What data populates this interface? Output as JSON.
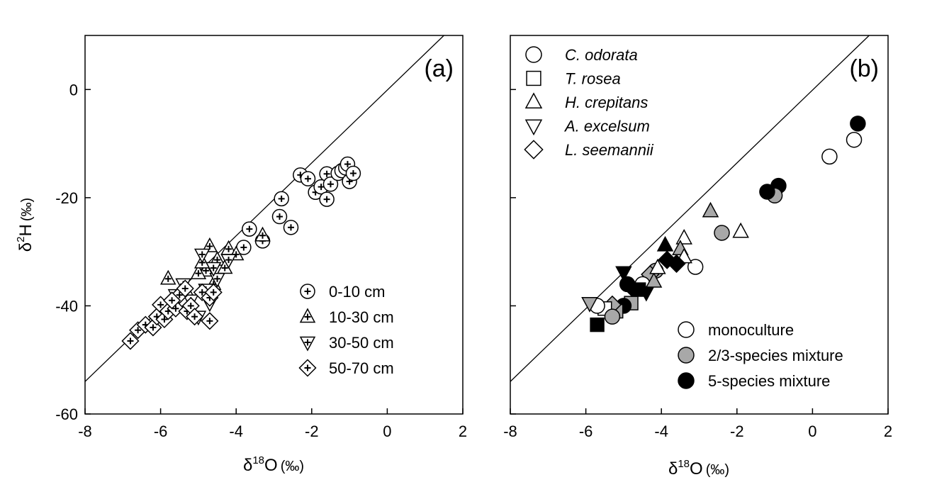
{
  "chart_data": [
    {
      "type": "scatter",
      "panel_label": "(a)",
      "xlabel": "δ18O (‰)",
      "xlabel_parts": {
        "delta": "δ",
        "sup": "18",
        "base": "O",
        "unit": "(‰)"
      },
      "ylabel": "δ2H (‰)",
      "ylabel_parts": {
        "delta": "δ",
        "sup": "2",
        "base": "H",
        "unit": "(‰)"
      },
      "xlim": [
        -8,
        2
      ],
      "ylim": [
        -60,
        10
      ],
      "xticks": [
        -8,
        -6,
        -4,
        -2,
        0,
        2
      ],
      "yticks": [
        -60,
        -40,
        -20,
        0
      ],
      "grid": false,
      "reference_line": {
        "x": [
          -8,
          1.5
        ],
        "y": [
          -54,
          10
        ]
      },
      "legend_position": "bottom-right",
      "series": [
        {
          "name": "0-10 cm",
          "marker": "circle-plus",
          "points": [
            [
              -2.3,
              -15.8
            ],
            [
              -2.1,
              -16.5
            ],
            [
              -1.9,
              -19.0
            ],
            [
              -1.75,
              -18.0
            ],
            [
              -1.6,
              -15.6
            ],
            [
              -1.5,
              -17.5
            ],
            [
              -1.3,
              -15.5
            ],
            [
              -1.2,
              -15.0
            ],
            [
              -1.1,
              -14.5
            ],
            [
              -1.05,
              -13.8
            ],
            [
              -1.0,
              -17.0
            ],
            [
              -0.9,
              -15.5
            ],
            [
              -1.6,
              -20.3
            ],
            [
              -2.8,
              -20.2
            ],
            [
              -2.85,
              -23.5
            ],
            [
              -2.55,
              -25.5
            ],
            [
              -3.65,
              -25.8
            ],
            [
              -3.3,
              -28.0
            ],
            [
              -3.8,
              -29.2
            ]
          ]
        },
        {
          "name": "10-30 cm",
          "marker": "triangle-plus",
          "points": [
            [
              -5.8,
              -35.0
            ],
            [
              -4.7,
              -29.0
            ],
            [
              -4.5,
              -31.5
            ],
            [
              -4.2,
              -29.5
            ],
            [
              -4.0,
              -30.5
            ],
            [
              -3.3,
              -27.0
            ],
            [
              -4.3,
              -33.0
            ],
            [
              -4.8,
              -33.5
            ],
            [
              -5.0,
              -34.0
            ],
            [
              -4.6,
              -36.0
            ],
            [
              -5.3,
              -37.5
            ],
            [
              -4.9,
              -32.0
            ]
          ]
        },
        {
          "name": "30-50 cm",
          "marker": "triangle-down-plus",
          "points": [
            [
              -5.6,
              -38.0
            ],
            [
              -5.2,
              -39.0
            ],
            [
              -4.8,
              -37.0
            ],
            [
              -4.5,
              -35.0
            ],
            [
              -4.7,
              -39.5
            ],
            [
              -5.0,
              -42.0
            ],
            [
              -4.2,
              -31.5
            ],
            [
              -4.9,
              -30.5
            ],
            [
              -5.4,
              -36.0
            ],
            [
              -4.6,
              -33.0
            ]
          ]
        },
        {
          "name": "50-70 cm",
          "marker": "diamond-plus",
          "points": [
            [
              -6.8,
              -46.5
            ],
            [
              -6.6,
              -44.5
            ],
            [
              -6.4,
              -43.5
            ],
            [
              -6.2,
              -44.0
            ],
            [
              -6.1,
              -42.0
            ],
            [
              -6.0,
              -39.8
            ],
            [
              -5.9,
              -42.5
            ],
            [
              -5.8,
              -41.0
            ],
            [
              -5.6,
              -40.5
            ],
            [
              -5.5,
              -38.0
            ],
            [
              -5.35,
              -36.8
            ],
            [
              -5.3,
              -41.0
            ],
            [
              -5.2,
              -40.0
            ],
            [
              -5.1,
              -42.0
            ],
            [
              -4.9,
              -37.5
            ],
            [
              -4.7,
              -38.5
            ],
            [
              -4.6,
              -37.5
            ],
            [
              -4.7,
              -42.8
            ],
            [
              -5.7,
              -39.0
            ]
          ]
        }
      ]
    },
    {
      "type": "scatter",
      "panel_label": "(b)",
      "xlabel": "δ18O (‰)",
      "xlabel_parts": {
        "delta": "δ",
        "sup": "18",
        "base": "O",
        "unit": "(‰)"
      },
      "xlim": [
        -8,
        2
      ],
      "ylim": [
        -60,
        10
      ],
      "xticks": [
        -8,
        -6,
        -4,
        -2,
        0,
        2
      ],
      "grid": false,
      "reference_line": {
        "x": [
          -8,
          1.5
        ],
        "y": [
          -54,
          10
        ]
      },
      "legend_species": {
        "position": "top-left",
        "items": [
          {
            "name": "C. odorata",
            "marker": "circle"
          },
          {
            "name": "T. rosea",
            "marker": "square"
          },
          {
            "name": "H. crepitans",
            "marker": "triangle"
          },
          {
            "name": "A. excelsum",
            "marker": "triangle-down"
          },
          {
            "name": "L. seemannii",
            "marker": "diamond"
          }
        ]
      },
      "legend_treatment": {
        "position": "bottom-right",
        "items": [
          {
            "name": "monoculture",
            "color": "#ffffff"
          },
          {
            "name": "2/3-species mixture",
            "color": "#a8a8a8"
          },
          {
            "name": "5-species mixture",
            "color": "#000000"
          }
        ]
      },
      "points": [
        {
          "x": 1.2,
          "y": -6.3,
          "marker": "circle",
          "color": "#000000"
        },
        {
          "x": 1.1,
          "y": -9.3,
          "marker": "circle",
          "color": "#ffffff"
        },
        {
          "x": 0.45,
          "y": -12.4,
          "marker": "circle",
          "color": "#ffffff"
        },
        {
          "x": -0.9,
          "y": -17.8,
          "marker": "circle",
          "color": "#000000"
        },
        {
          "x": -1.0,
          "y": -19.6,
          "marker": "circle",
          "color": "#a8a8a8"
        },
        {
          "x": -1.2,
          "y": -18.9,
          "marker": "circle",
          "color": "#000000"
        },
        {
          "x": -2.4,
          "y": -26.5,
          "marker": "circle",
          "color": "#a8a8a8"
        },
        {
          "x": -3.1,
          "y": -32.8,
          "marker": "circle",
          "color": "#ffffff"
        },
        {
          "x": -2.7,
          "y": -22.5,
          "marker": "triangle",
          "color": "#a8a8a8"
        },
        {
          "x": -1.9,
          "y": -26.3,
          "marker": "triangle",
          "color": "#ffffff"
        },
        {
          "x": -3.4,
          "y": -27.5,
          "marker": "triangle",
          "color": "#ffffff"
        },
        {
          "x": -3.5,
          "y": -29.5,
          "marker": "triangle",
          "color": "#a8a8a8"
        },
        {
          "x": -3.4,
          "y": -31.0,
          "marker": "triangle",
          "color": "#ffffff"
        },
        {
          "x": -3.9,
          "y": -28.8,
          "marker": "triangle",
          "color": "#000000"
        },
        {
          "x": -3.85,
          "y": -31.5,
          "marker": "diamond",
          "color": "#000000"
        },
        {
          "x": -3.6,
          "y": -32.2,
          "marker": "diamond",
          "color": "#000000"
        },
        {
          "x": -4.15,
          "y": -33.5,
          "marker": "circle",
          "color": "#a8a8a8"
        },
        {
          "x": -4.3,
          "y": -34.2,
          "marker": "diamond",
          "color": "#a8a8a8"
        },
        {
          "x": -4.5,
          "y": -36.0,
          "marker": "circle",
          "color": "#ffffff"
        },
        {
          "x": -4.6,
          "y": -37.0,
          "marker": "square",
          "color": "#000000"
        },
        {
          "x": -4.4,
          "y": -37.5,
          "marker": "triangle-down",
          "color": "#000000"
        },
        {
          "x": -4.8,
          "y": -36.5,
          "marker": "diamond",
          "color": "#000000"
        },
        {
          "x": -5.0,
          "y": -33.8,
          "marker": "triangle-down",
          "color": "#000000"
        },
        {
          "x": -4.9,
          "y": -36.0,
          "marker": "circle",
          "color": "#000000"
        },
        {
          "x": -4.8,
          "y": -39.5,
          "marker": "square",
          "color": "#a8a8a8"
        },
        {
          "x": -5.0,
          "y": -40.0,
          "marker": "circle",
          "color": "#000000"
        },
        {
          "x": -5.2,
          "y": -41.0,
          "marker": "square",
          "color": "#a8a8a8"
        },
        {
          "x": -5.3,
          "y": -39.8,
          "marker": "diamond",
          "color": "#a8a8a8"
        },
        {
          "x": -5.5,
          "y": -40.5,
          "marker": "square",
          "color": "#ffffff"
        },
        {
          "x": -5.7,
          "y": -40.0,
          "marker": "circle",
          "color": "#ffffff"
        },
        {
          "x": -5.9,
          "y": -39.5,
          "marker": "triangle-down",
          "color": "#a8a8a8"
        },
        {
          "x": -5.7,
          "y": -43.5,
          "marker": "square",
          "color": "#000000"
        },
        {
          "x": -5.3,
          "y": -42.0,
          "marker": "circle",
          "color": "#a8a8a8"
        },
        {
          "x": -4.2,
          "y": -35.5,
          "marker": "triangle",
          "color": "#a8a8a8"
        },
        {
          "x": -4.1,
          "y": -33.0,
          "marker": "triangle",
          "color": "#ffffff"
        }
      ]
    }
  ]
}
